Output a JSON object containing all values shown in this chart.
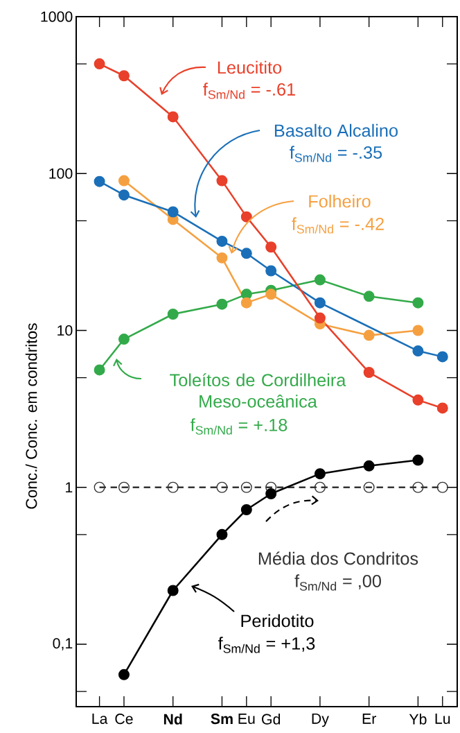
{
  "chart_data": {
    "type": "line",
    "ylabel": "Conc./ Conc. em condritos",
    "log": "y",
    "ylim": [
      0.04,
      1000
    ],
    "yticks": [
      {
        "value": 0.05,
        "label": null
      },
      {
        "value": 0.1,
        "label": "0,1"
      },
      {
        "value": 0.5,
        "label": null
      },
      1,
      {
        "value": 5,
        "label": null
      },
      10,
      {
        "value": 50,
        "label": null
      },
      100,
      {
        "value": 500,
        "label": null
      },
      1000
    ],
    "categories": [
      "La",
      "Ce",
      null,
      "**Nd**",
      null,
      "**Sm**",
      "Eu",
      "Gd",
      null,
      "Dy",
      null,
      "Er",
      null,
      "Yb",
      "Lu"
    ],
    "marker": "circle",
    "series": [
      {
        "name": "Leucitito",
        "color": "#e8402a",
        "line_style": "solid",
        "values": [
          500,
          420,
          null,
          230,
          null,
          90,
          53,
          34,
          null,
          12,
          null,
          5.4,
          null,
          3.6,
          3.2
        ]
      },
      {
        "name": "Basalto Alcalino",
        "color": "#1a6fb8",
        "line_style": "solid",
        "values": [
          89,
          73,
          null,
          57,
          null,
          37,
          31,
          24,
          null,
          15,
          null,
          null,
          null,
          7.4,
          6.8
        ]
      },
      {
        "name": "Folheiro",
        "color": "#f5a040",
        "line_style": "solid",
        "values": [
          null,
          90,
          null,
          51,
          null,
          29,
          15,
          17,
          null,
          11,
          null,
          9.3,
          null,
          10,
          null
        ]
      },
      {
        "name": "Toleítos de Cordilheira Meso-oceânica",
        "color": "#33aa4a",
        "line_style": "solid",
        "values": [
          5.6,
          8.8,
          null,
          12.7,
          null,
          14.7,
          17,
          18,
          null,
          21,
          null,
          16.5,
          null,
          15,
          null
        ]
      },
      {
        "name": "Peridotito",
        "color": "#000000",
        "line_style": "solid",
        "values": [
          null,
          0.064,
          null,
          0.22,
          null,
          0.5,
          0.72,
          0.91,
          null,
          1.22,
          null,
          1.37,
          null,
          1.49,
          null
        ]
      },
      {
        "name": "Média dos Condritos",
        "color": "#333333",
        "line_style": "dashed",
        "values": [
          1,
          1,
          null,
          1,
          null,
          1,
          1,
          1,
          null,
          1,
          null,
          1,
          null,
          1,
          1
        ]
      }
    ],
    "annotations": [
      "f$_{Sm/Nd}$ = -.61",
      "f$_{Sm/Nd}$ = -.35",
      "f$_{Sm/Nd}$ = -.42",
      "f$_{Sm/Nd}$ = +.18",
      "f$_{Sm/Nd}$ = +1,3",
      "f$_{Sm/Nd}$ = ,00"
    ]
  }
}
